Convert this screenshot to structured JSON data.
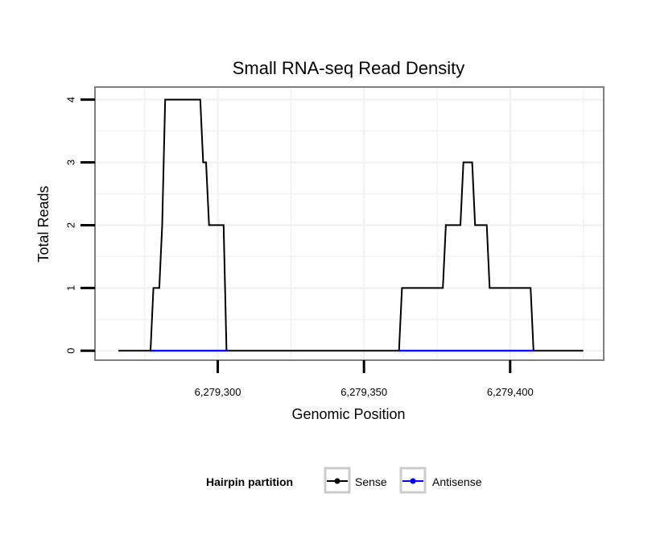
{
  "chart_data": {
    "type": "line",
    "title": "Small RNA-seq Read Density",
    "xlabel": "Genomic Position",
    "ylabel": "Total Reads",
    "xlim": [
      6279258,
      6279432
    ],
    "ylim": [
      -0.15,
      4.2
    ],
    "x_ticks": [
      6279300,
      6279350,
      6279400
    ],
    "x_tick_labels": [
      "6,279,300",
      "6,279,350",
      "6,279,400"
    ],
    "y_ticks": [
      0,
      1,
      2,
      3,
      4
    ],
    "y_tick_labels": [
      "0",
      "1",
      "2",
      "3",
      "4"
    ],
    "grid": true,
    "legend": {
      "title": "Hairpin partition",
      "position": "bottom",
      "entries": [
        {
          "label": "Sense",
          "color": "#000000"
        },
        {
          "label": "Antisense",
          "color": "#0000ff"
        }
      ]
    },
    "series": [
      {
        "name": "Sense",
        "color": "#000000",
        "x": [
          6279266,
          6279277,
          6279278,
          6279280,
          6279281,
          6279282,
          6279294,
          6279295,
          6279296,
          6279297,
          6279298,
          6279301,
          6279302,
          6279303,
          6279362,
          6279363,
          6279377,
          6279378,
          6279383,
          6279384,
          6279387,
          6279388,
          6279392,
          6279393,
          6279407,
          6279408,
          6279425
        ],
        "y": [
          0,
          0,
          1,
          1,
          2,
          4,
          4,
          3,
          3,
          2,
          2,
          2,
          2,
          0,
          0,
          1,
          1,
          2,
          2,
          3,
          3,
          2,
          2,
          1,
          1,
          0,
          0
        ]
      },
      {
        "name": "Antisense",
        "color": "#0000ff",
        "x": [
          6279277,
          6279303,
          6279362,
          6279408
        ],
        "y": [
          0,
          0,
          0,
          0
        ],
        "segments": [
          [
            6279277,
            6279303
          ],
          [
            6279362,
            6279408
          ]
        ]
      }
    ]
  }
}
